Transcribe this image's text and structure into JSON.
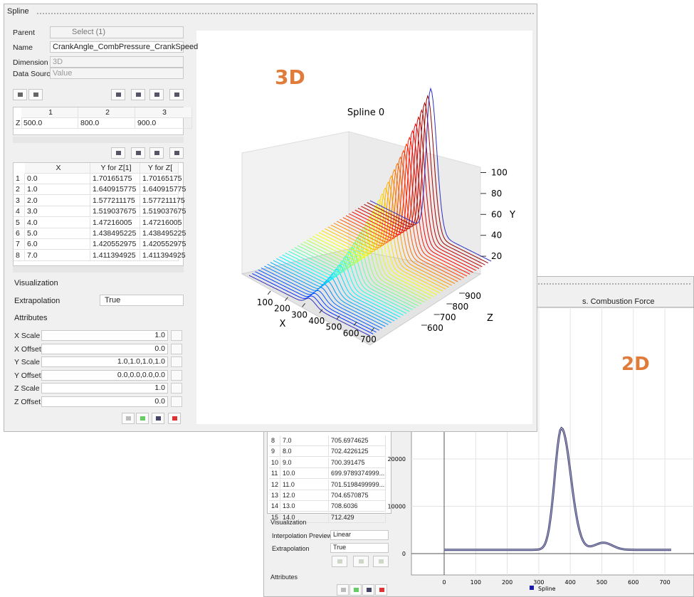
{
  "front_window": {
    "title": "Spline",
    "form": {
      "parent_label": "Parent",
      "parent_value": "Select (1)",
      "name_label": "Name",
      "name_value": "CrankAngle_CombPressure_CrankSpeed",
      "dimension_label": "Dimension",
      "dimension_value": "3D",
      "data_source_label": "Data Source",
      "data_source_value": "Value"
    },
    "z_table": {
      "columns": [
        "1",
        "2",
        "3"
      ],
      "row_label": "Z",
      "values": [
        "500.0",
        "800.0",
        "900.0"
      ]
    },
    "data_table": {
      "columns": [
        "X",
        "Y for Z[1]",
        "Y for Z["
      ],
      "rows": [
        [
          "1",
          "0.0",
          "1.70165175",
          "1.70165175"
        ],
        [
          "2",
          "1.0",
          "1.640915775",
          "1.640915775"
        ],
        [
          "3",
          "2.0",
          "1.577211175",
          "1.577211175"
        ],
        [
          "4",
          "3.0",
          "1.519037675",
          "1.519037675"
        ],
        [
          "5",
          "4.0",
          "1.47216005",
          "1.47216005"
        ],
        [
          "6",
          "5.0",
          "1.438495225",
          "1.438495225"
        ],
        [
          "7",
          "6.0",
          "1.420552975",
          "1.420552975"
        ],
        [
          "8",
          "7.0",
          "1.411394925",
          "1.411394925"
        ]
      ]
    },
    "visualization": "Visualization",
    "extrapolation_label": "Extrapolation",
    "extrapolation_value": "True",
    "attributes": "Attributes",
    "attribute_rows": [
      {
        "label": "X Scale",
        "value": "1.0"
      },
      {
        "label": "X Offset",
        "value": "0.0"
      },
      {
        "label": "Y Scale",
        "value": "1.0,1.0,1.0,1.0"
      },
      {
        "label": "Y Offset",
        "value": "0.0,0.0,0.0,0.0"
      },
      {
        "label": "Z Scale",
        "value": "1.0"
      },
      {
        "label": "Z Offset",
        "value": "0.0"
      }
    ]
  },
  "plot3d": {
    "badge": "3D",
    "title": "Spline 0",
    "yticks": [
      20,
      40,
      60,
      80,
      100
    ],
    "ylabel": "Y",
    "xticks": [
      100,
      200,
      300,
      400,
      500,
      600,
      700
    ],
    "xlabel": "X",
    "zticks": [
      600,
      700,
      800,
      900
    ],
    "zlabel": "Z"
  },
  "back_window": {
    "title_fragment": "s. Combustion Force",
    "badge": "2D",
    "rows": [
      [
        "8",
        "7.0",
        "705.6974625"
      ],
      [
        "9",
        "8.0",
        "702.4226125"
      ],
      [
        "10",
        "9.0",
        "700.391475"
      ],
      [
        "11",
        "10.0",
        "699.9789374999..."
      ],
      [
        "12",
        "11.0",
        "701.5198499999..."
      ],
      [
        "13",
        "12.0",
        "704.6570875"
      ],
      [
        "14",
        "13.0",
        "708.6036"
      ],
      [
        "15",
        "14.0",
        "712.429"
      ]
    ],
    "visualization": "Visualization",
    "interpolation_label": "Interpolation Preview",
    "interpolation_value": "Linear",
    "extrapolation_label": "Extrapolation",
    "extrapolation_value": "True",
    "attributes": "Attributes",
    "chart": {
      "yticks": [
        0,
        10000,
        20000
      ],
      "xticks": [
        0,
        100,
        200,
        300,
        400,
        500,
        600,
        700
      ],
      "legend": "Spline",
      "legend_color": "#1a1aa8"
    }
  }
}
